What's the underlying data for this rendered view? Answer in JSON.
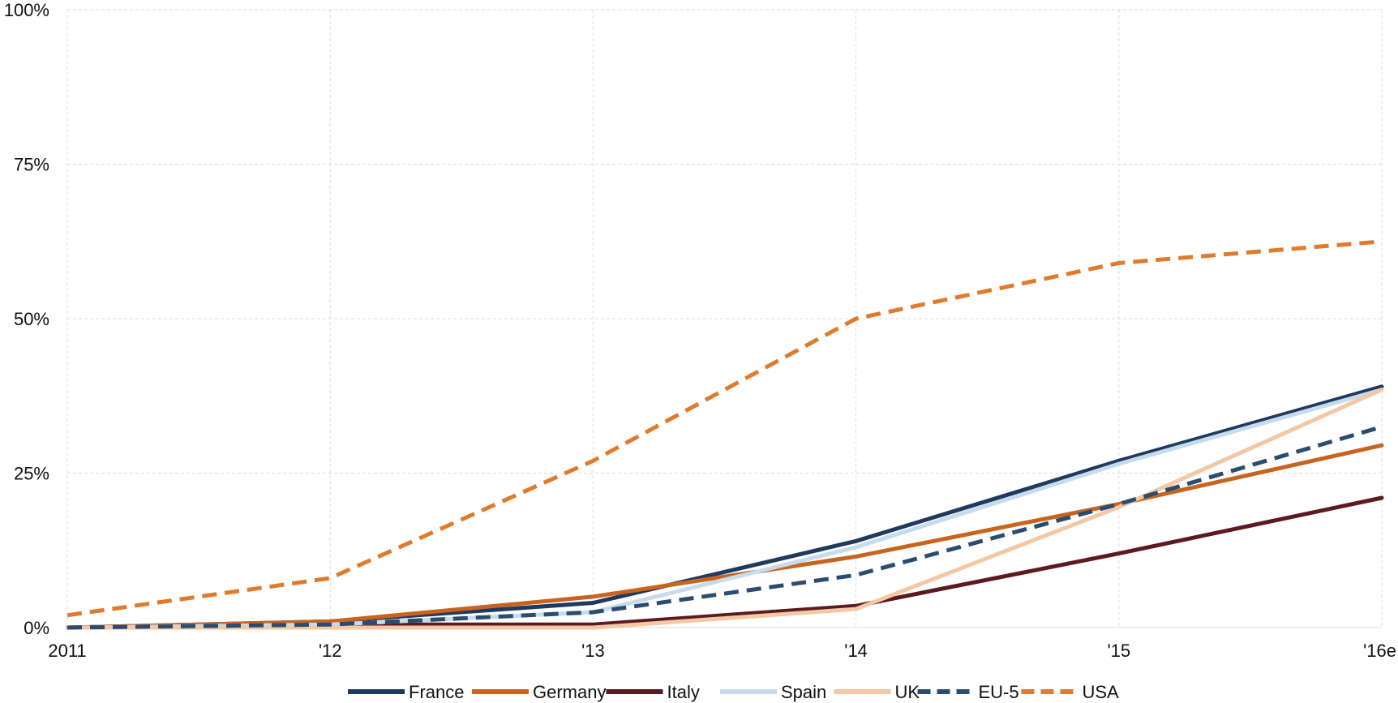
{
  "chart_data": {
    "type": "line",
    "title": "",
    "xlabel": "",
    "ylabel": "",
    "categories": [
      "2011",
      "'12",
      "'13",
      "'14",
      "'15",
      "'16e"
    ],
    "y_ticks": [
      "0%",
      "25%",
      "50%",
      "75%",
      "100%"
    ],
    "ylim": [
      0,
      100
    ],
    "grid": true,
    "legend_position": "bottom",
    "series": [
      {
        "name": "France",
        "values": [
          0,
          1,
          4,
          14,
          27,
          39
        ],
        "color": "#1f3a5f",
        "dashed": false,
        "width": 5
      },
      {
        "name": "Germany",
        "values": [
          0,
          1,
          5,
          11.5,
          20,
          29.5
        ],
        "color": "#c8641f",
        "dashed": false,
        "width": 5
      },
      {
        "name": "Italy",
        "values": [
          0,
          0.5,
          0.5,
          3.5,
          12,
          21
        ],
        "color": "#5c1a1f",
        "dashed": false,
        "width": 5
      },
      {
        "name": "Spain",
        "values": [
          0,
          0.5,
          2.5,
          13,
          26.5,
          38.5
        ],
        "color": "#c6dceb",
        "dashed": false,
        "width": 5
      },
      {
        "name": "UK",
        "values": [
          0,
          0,
          0,
          3,
          19.5,
          38.5
        ],
        "color": "#f4c8a4",
        "dashed": false,
        "width": 5
      },
      {
        "name": "EU-5",
        "values": [
          0,
          0.5,
          2.5,
          8.5,
          20,
          32.5
        ],
        "color": "#2b4c6f",
        "dashed": true,
        "width": 5
      },
      {
        "name": "USA",
        "values": [
          2,
          8,
          27,
          50,
          59,
          62.5
        ],
        "color": "#e07b2c",
        "dashed": true,
        "width": 5
      }
    ]
  }
}
